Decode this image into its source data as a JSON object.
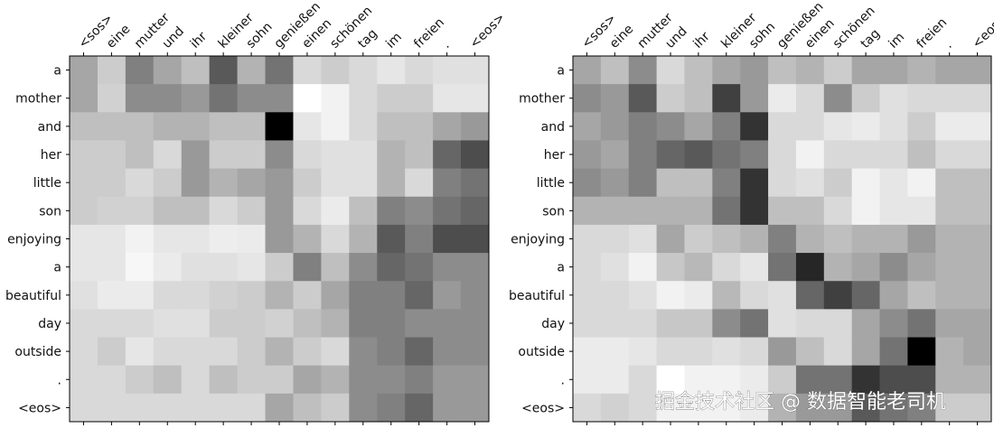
{
  "chart_data": [
    {
      "type": "heatmap",
      "cmap": "gray",
      "vlim": [
        0,
        1
      ],
      "x_categories": [
        "<sos>",
        "eine",
        "mutter",
        "und",
        "ihr",
        "kleiner",
        "sohn",
        "genießen",
        "einen",
        "schönen",
        "tag",
        "im",
        "freien",
        ".",
        "<eos>"
      ],
      "y_categories": [
        "a",
        "mother",
        "and",
        "her",
        "little",
        "son",
        "enjoying",
        "a",
        "beautiful",
        "day",
        "outside",
        ".",
        "<eos>"
      ],
      "values": [
        [
          0.65,
          0.8,
          0.5,
          0.65,
          0.75,
          0.35,
          0.7,
          0.45,
          0.85,
          0.8,
          0.85,
          0.9,
          0.85,
          0.88,
          0.88
        ],
        [
          0.65,
          0.82,
          0.55,
          0.55,
          0.6,
          0.45,
          0.55,
          0.55,
          1.0,
          0.95,
          0.85,
          0.8,
          0.8,
          0.9,
          0.9
        ],
        [
          0.75,
          0.75,
          0.75,
          0.7,
          0.7,
          0.75,
          0.75,
          0.0,
          0.9,
          0.95,
          0.85,
          0.75,
          0.75,
          0.65,
          0.6
        ],
        [
          0.8,
          0.8,
          0.75,
          0.85,
          0.6,
          0.8,
          0.8,
          0.55,
          0.85,
          0.88,
          0.88,
          0.7,
          0.75,
          0.4,
          0.3
        ],
        [
          0.8,
          0.8,
          0.85,
          0.8,
          0.6,
          0.7,
          0.65,
          0.6,
          0.8,
          0.88,
          0.88,
          0.7,
          0.85,
          0.5,
          0.45
        ],
        [
          0.8,
          0.82,
          0.82,
          0.75,
          0.75,
          0.85,
          0.8,
          0.6,
          0.85,
          0.92,
          0.75,
          0.5,
          0.55,
          0.45,
          0.4
        ],
        [
          0.9,
          0.9,
          0.95,
          0.9,
          0.9,
          0.93,
          0.92,
          0.6,
          0.7,
          0.85,
          0.7,
          0.35,
          0.5,
          0.3,
          0.3
        ],
        [
          0.9,
          0.9,
          0.97,
          0.92,
          0.88,
          0.88,
          0.9,
          0.8,
          0.5,
          0.75,
          0.55,
          0.4,
          0.45,
          0.55,
          0.55
        ],
        [
          0.88,
          0.92,
          0.92,
          0.85,
          0.85,
          0.82,
          0.8,
          0.7,
          0.8,
          0.65,
          0.5,
          0.5,
          0.4,
          0.6,
          0.55
        ],
        [
          0.85,
          0.85,
          0.85,
          0.88,
          0.88,
          0.8,
          0.8,
          0.82,
          0.75,
          0.7,
          0.5,
          0.5,
          0.55,
          0.55,
          0.55
        ],
        [
          0.85,
          0.8,
          0.9,
          0.85,
          0.85,
          0.85,
          0.8,
          0.7,
          0.8,
          0.85,
          0.55,
          0.5,
          0.4,
          0.55,
          0.55
        ],
        [
          0.85,
          0.85,
          0.8,
          0.75,
          0.85,
          0.75,
          0.8,
          0.8,
          0.65,
          0.7,
          0.55,
          0.55,
          0.5,
          0.6,
          0.6
        ],
        [
          0.85,
          0.85,
          0.85,
          0.85,
          0.85,
          0.85,
          0.85,
          0.65,
          0.75,
          0.8,
          0.55,
          0.5,
          0.4,
          0.6,
          0.6
        ]
      ]
    },
    {
      "type": "heatmap",
      "cmap": "gray",
      "vlim": [
        0,
        1
      ],
      "x_categories": [
        "<sos>",
        "eine",
        "mutter",
        "und",
        "ihr",
        "kleiner",
        "sohn",
        "genießen",
        "einen",
        "schönen",
        "tag",
        "im",
        "freien",
        ".",
        "<eos>"
      ],
      "y_categories": [
        "a",
        "mother",
        "and",
        "her",
        "little",
        "son",
        "enjoying",
        "a",
        "beautiful",
        "day",
        "outside",
        ".",
        "<eos>"
      ],
      "values": [
        [
          0.65,
          0.75,
          0.55,
          0.85,
          0.75,
          0.65,
          0.6,
          0.75,
          0.7,
          0.8,
          0.65,
          0.65,
          0.7,
          0.65,
          0.65
        ],
        [
          0.55,
          0.6,
          0.35,
          0.8,
          0.75,
          0.25,
          0.6,
          0.92,
          0.85,
          0.55,
          0.8,
          0.88,
          0.85,
          0.85,
          0.85
        ],
        [
          0.65,
          0.6,
          0.5,
          0.55,
          0.65,
          0.5,
          0.2,
          0.85,
          0.85,
          0.9,
          0.92,
          0.88,
          0.8,
          0.92,
          0.92
        ],
        [
          0.6,
          0.65,
          0.5,
          0.4,
          0.35,
          0.45,
          0.5,
          0.85,
          0.95,
          0.85,
          0.85,
          0.85,
          0.75,
          0.85,
          0.85
        ],
        [
          0.55,
          0.6,
          0.5,
          0.75,
          0.75,
          0.5,
          0.2,
          0.85,
          0.88,
          0.8,
          0.95,
          0.9,
          0.95,
          0.75,
          0.75
        ],
        [
          0.7,
          0.7,
          0.7,
          0.7,
          0.7,
          0.45,
          0.2,
          0.75,
          0.75,
          0.85,
          0.95,
          0.9,
          0.9,
          0.75,
          0.75
        ],
        [
          0.85,
          0.85,
          0.88,
          0.65,
          0.8,
          0.75,
          0.7,
          0.5,
          0.7,
          0.75,
          0.7,
          0.7,
          0.6,
          0.7,
          0.7
        ],
        [
          0.85,
          0.88,
          0.95,
          0.78,
          0.72,
          0.85,
          0.9,
          0.45,
          0.15,
          0.7,
          0.65,
          0.55,
          0.65,
          0.7,
          0.7
        ],
        [
          0.85,
          0.85,
          0.88,
          0.95,
          0.92,
          0.72,
          0.85,
          0.88,
          0.4,
          0.25,
          0.4,
          0.65,
          0.75,
          0.7,
          0.7
        ],
        [
          0.85,
          0.85,
          0.85,
          0.78,
          0.78,
          0.55,
          0.45,
          0.88,
          0.85,
          0.85,
          0.65,
          0.55,
          0.45,
          0.65,
          0.65
        ],
        [
          0.92,
          0.92,
          0.9,
          0.85,
          0.85,
          0.88,
          0.85,
          0.6,
          0.75,
          0.85,
          0.65,
          0.45,
          0.0,
          0.7,
          0.65
        ],
        [
          0.92,
          0.92,
          0.85,
          1.0,
          0.95,
          0.95,
          0.92,
          0.8,
          0.45,
          0.45,
          0.2,
          0.3,
          0.3,
          0.7,
          0.7
        ],
        [
          0.85,
          0.82,
          0.85,
          0.95,
          0.95,
          0.95,
          0.92,
          0.7,
          0.6,
          0.6,
          0.35,
          0.45,
          0.5,
          0.8,
          0.8
        ]
      ]
    }
  ],
  "watermark": "掘金技术社区 @ 数据智能老司机"
}
